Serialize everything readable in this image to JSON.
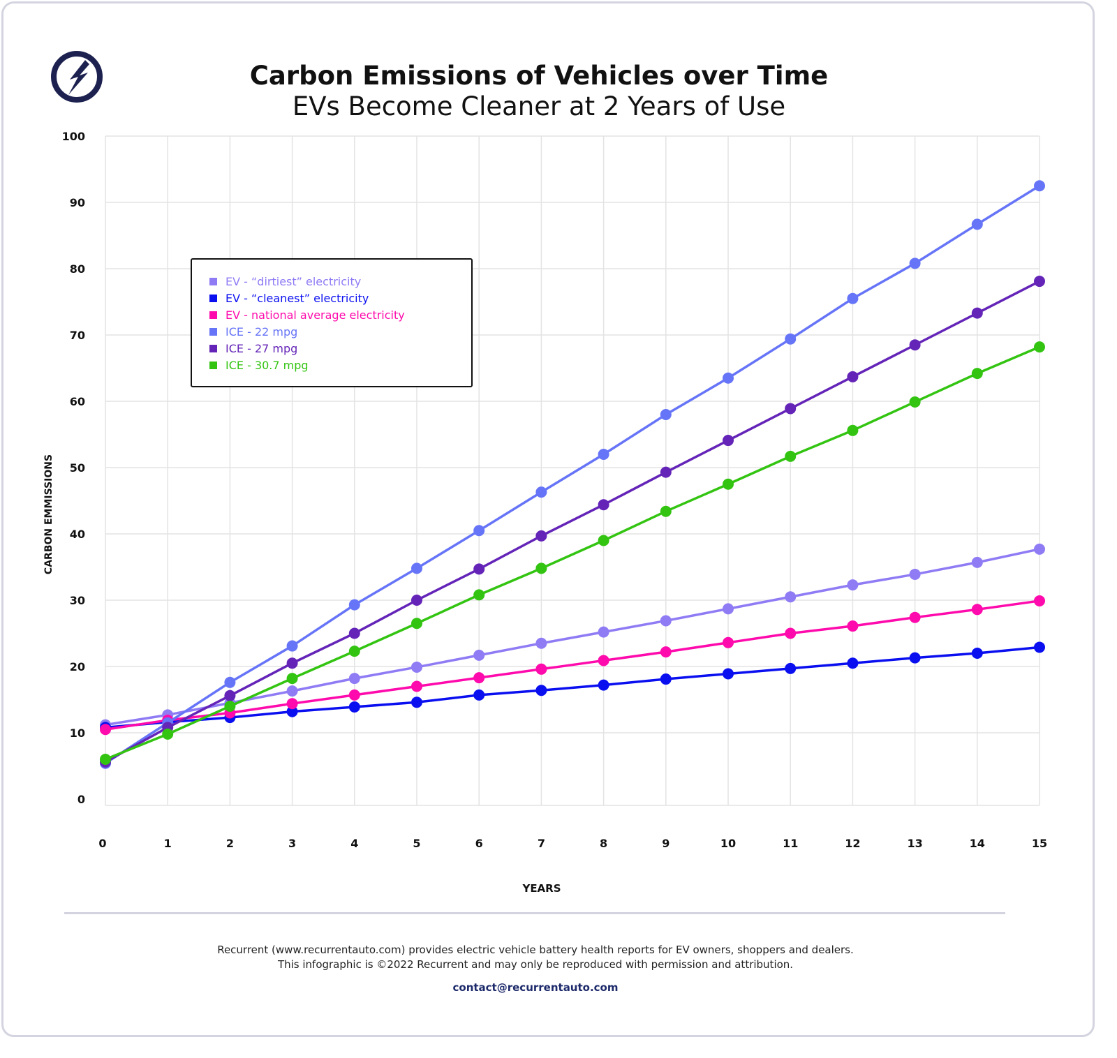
{
  "colors": {
    "logo": "#1c2150",
    "grid": "#e3e3e3",
    "text": "#111111"
  },
  "logo_icon": "lightning-bolt-circle-icon",
  "chart_data": {
    "type": "line",
    "title": "Carbon Emissions of Vehicles over Time",
    "subtitle": "EVs Become Cleaner at 2 Years of Use",
    "xlabel": "YEARS",
    "ylabel": "CARBON EMMISSIONS",
    "xlim": [
      0,
      15
    ],
    "ylim": [
      0,
      100
    ],
    "x": [
      0,
      1,
      2,
      3,
      4,
      5,
      6,
      7,
      8,
      9,
      10,
      11,
      12,
      13,
      14,
      15
    ],
    "yticks": [
      0,
      10,
      20,
      30,
      40,
      50,
      60,
      70,
      80,
      90,
      100
    ],
    "grid": true,
    "legend_position": "upper-left",
    "series": [
      {
        "name": "EV - “dirtiest” electricity",
        "color": "#8f7cf5",
        "values": [
          11.2,
          12.7,
          14.5,
          16.3,
          18.2,
          19.9,
          21.7,
          23.5,
          25.2,
          26.9,
          28.7,
          30.5,
          32.3,
          33.9,
          35.7,
          37.7
        ]
      },
      {
        "name": "EV - “cleanest” electricity",
        "color": "#0a0ff0",
        "values": [
          10.8,
          11.6,
          12.3,
          13.2,
          13.9,
          14.6,
          15.7,
          16.4,
          17.2,
          18.1,
          18.9,
          19.7,
          20.5,
          21.3,
          22.0,
          22.9
        ]
      },
      {
        "name": "EV - national average electricity",
        "color": "#ff0aac",
        "values": [
          10.5,
          11.9,
          13.0,
          14.4,
          15.7,
          17.0,
          18.3,
          19.6,
          20.9,
          22.2,
          23.6,
          25.0,
          26.1,
          27.4,
          28.6,
          29.9
        ]
      },
      {
        "name": "ICE - 22 mpg",
        "color": "#6674f7",
        "values": [
          5.4,
          11.5,
          17.6,
          23.1,
          29.3,
          34.8,
          40.5,
          46.3,
          52.0,
          58.0,
          63.5,
          69.4,
          75.5,
          80.8,
          86.7,
          92.5
        ]
      },
      {
        "name": "ICE - 27 mpg",
        "color": "#6424b8",
        "values": [
          5.6,
          10.8,
          15.6,
          20.5,
          25.0,
          30.0,
          34.7,
          39.7,
          44.4,
          49.3,
          54.1,
          58.9,
          63.7,
          68.5,
          73.3,
          78.1
        ]
      },
      {
        "name": "ICE - 30.7 mpg",
        "color": "#33c412",
        "values": [
          6.0,
          9.8,
          14.0,
          18.2,
          22.3,
          26.5,
          30.8,
          34.8,
          39.0,
          43.4,
          47.5,
          51.7,
          55.6,
          59.9,
          64.2,
          68.2
        ]
      }
    ]
  },
  "footer": {
    "line1": "Recurrent (www.recurrentauto.com) provides electric vehicle battery health reports for EV owners, shoppers and dealers.",
    "line2": "This infographic is ©2022 Recurrent and may only be reproduced with permission and attribution.",
    "contact": "contact@recurrentauto.com"
  }
}
